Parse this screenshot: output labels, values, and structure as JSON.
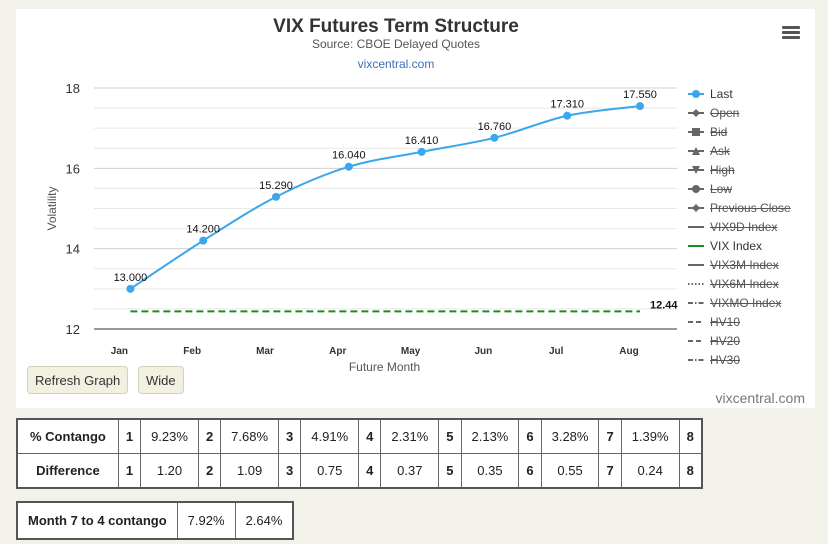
{
  "chart_data": {
    "type": "line",
    "title": "VIX Futures Term Structure",
    "subtitle": "Source: CBOE Delayed Quotes",
    "site_label": "vixcentral.com",
    "credit": "vixcentral.com",
    "xlabel": "Future Month",
    "ylabel": "Volatility",
    "categories": [
      "Jan",
      "Feb",
      "Mar",
      "Apr",
      "May",
      "Jun",
      "Jul",
      "Aug"
    ],
    "ylim": [
      12,
      18
    ],
    "yticks": [
      12,
      14,
      16,
      18
    ],
    "grid": true,
    "legend_position": "right",
    "series": [
      {
        "name": "Last",
        "values": [
          13.0,
          14.2,
          15.29,
          16.04,
          16.41,
          16.76,
          17.31,
          17.55
        ],
        "labels": [
          "13.000",
          "14.200",
          "15.290",
          "16.040",
          "16.410",
          "16.760",
          "17.310",
          "17.550"
        ],
        "color": "#3aa7ec"
      },
      {
        "name": "VIX Index",
        "values": [
          12.44,
          12.44,
          12.44,
          12.44,
          12.44,
          12.44,
          12.44,
          12.44
        ],
        "end_label": "12.44",
        "color": "#1f8a1f"
      }
    ]
  },
  "legend": [
    {
      "name": "Last",
      "visible": true,
      "symbol": "line-circle",
      "color": "#3aa7ec"
    },
    {
      "name": "Open",
      "visible": false,
      "symbol": "line-diamond",
      "color": "#666666"
    },
    {
      "name": "Bid",
      "visible": false,
      "symbol": "line-square",
      "color": "#666666"
    },
    {
      "name": "Ask",
      "visible": false,
      "symbol": "line-triangle",
      "color": "#666666"
    },
    {
      "name": "High",
      "visible": false,
      "symbol": "line-triangle-down",
      "color": "#666666"
    },
    {
      "name": "Low",
      "visible": false,
      "symbol": "line-circle",
      "color": "#666666"
    },
    {
      "name": "Previous Close",
      "visible": false,
      "symbol": "line-diamond",
      "color": "#666666"
    },
    {
      "name": "VIX9D Index",
      "visible": false,
      "symbol": "solid",
      "color": "#666666"
    },
    {
      "name": "VIX Index",
      "visible": true,
      "symbol": "solid",
      "color": "#1f8a1f"
    },
    {
      "name": "VIX3M Index",
      "visible": false,
      "symbol": "solid",
      "color": "#666666"
    },
    {
      "name": "VIX6M Index",
      "visible": false,
      "symbol": "dotted",
      "color": "#666666"
    },
    {
      "name": "VIXMO Index",
      "visible": false,
      "symbol": "dashdot",
      "color": "#666666"
    },
    {
      "name": "HV10",
      "visible": false,
      "symbol": "dashed",
      "color": "#666666"
    },
    {
      "name": "HV20",
      "visible": false,
      "symbol": "dashed",
      "color": "#666666"
    },
    {
      "name": "HV30",
      "visible": false,
      "symbol": "dashdot",
      "color": "#666666"
    }
  ],
  "buttons": {
    "refresh": "Refresh Graph",
    "wide": "Wide"
  },
  "table": {
    "rows": [
      {
        "label": "% Contango",
        "cells": [
          [
            "1",
            "9.23%"
          ],
          [
            "2",
            "7.68%"
          ],
          [
            "3",
            "4.91%"
          ],
          [
            "4",
            "2.31%"
          ],
          [
            "5",
            "2.13%"
          ],
          [
            "6",
            "3.28%"
          ],
          [
            "7",
            "1.39%"
          ],
          [
            "8",
            ""
          ]
        ]
      },
      {
        "label": "Difference",
        "cells": [
          [
            "1",
            "1.20"
          ],
          [
            "2",
            "1.09"
          ],
          [
            "3",
            "0.75"
          ],
          [
            "4",
            "0.37"
          ],
          [
            "5",
            "0.35"
          ],
          [
            "6",
            "0.55"
          ],
          [
            "7",
            "0.24"
          ],
          [
            "8",
            ""
          ]
        ]
      }
    ]
  },
  "month7to4": {
    "label": "Month 7 to 4 contango",
    "v1": "7.92%",
    "v2": "2.64%"
  }
}
